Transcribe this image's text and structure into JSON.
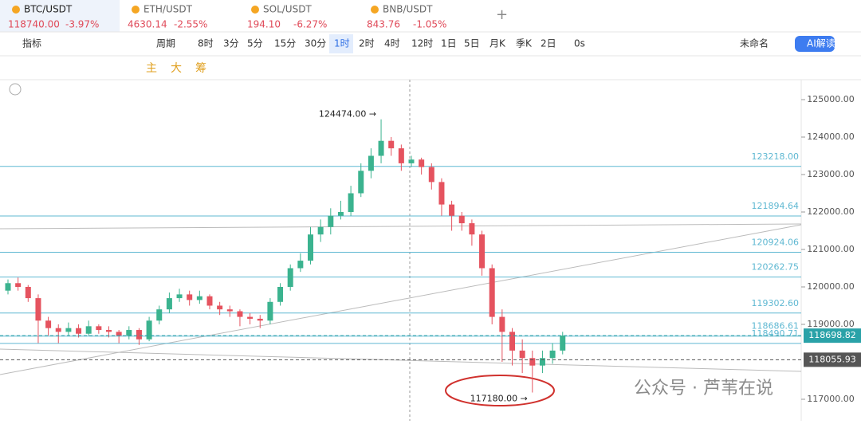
{
  "tabs": [
    {
      "symbol": "BTC/USDT",
      "price": "118740.00",
      "change": "-3.97%"
    },
    {
      "symbol": "ETH/USDT",
      "price": "4630.14",
      "change": "-2.55%"
    },
    {
      "symbol": "SOL/USDT",
      "price": "194.10",
      "change": "-6.27%"
    },
    {
      "symbol": "BNB/USDT",
      "price": "843.76",
      "change": "-1.05%"
    }
  ],
  "toolbar": [
    "指标",
    "周期",
    "8时",
    "3分",
    "5分",
    "15分",
    "30分",
    "1时",
    "2时",
    "4时",
    "12时",
    "1日",
    "5日",
    "月K",
    "季K",
    "2日",
    "0s",
    "未命名",
    "AI解读"
  ],
  "tools": [
    "主",
    "大",
    "筹"
  ],
  "watermark": "公众号 · 芦苇在说",
  "chart_data": {
    "type": "candlestick",
    "ylim": [
      116425,
      125532
    ],
    "yticks": [
      {
        "value": 117000,
        "label": "117000.00"
      },
      {
        "value": 119000,
        "label": "119000.00"
      },
      {
        "value": 120000,
        "label": "120000.00"
      },
      {
        "value": 121000,
        "label": "121000.00"
      },
      {
        "value": 122000,
        "label": "122000.00"
      },
      {
        "value": 123000,
        "label": "123000.00"
      },
      {
        "value": 124000,
        "label": "124000.00"
      },
      {
        "value": 125000,
        "label": "125000.00"
      }
    ],
    "up_color": "#3bb38f",
    "down_color": "#e5535f",
    "open": [
      119900,
      120100,
      120000,
      119700,
      119100,
      118900,
      118800,
      118900,
      118750,
      118950,
      118850,
      118800,
      118700,
      118850,
      118600,
      119100,
      119400,
      119700,
      119800,
      119650,
      119750,
      119500,
      119400,
      119350,
      119200,
      119150,
      119100,
      119600,
      120000,
      120500,
      120700,
      121400,
      121600,
      121900,
      122000,
      122500,
      123100,
      123500,
      123900,
      123700,
      123300,
      123400,
      123200,
      122800,
      122200,
      121900,
      121700,
      121400,
      120500,
      119200,
      118800,
      118300,
      118100,
      117900,
      118100,
      118300
    ],
    "high": [
      120200,
      120250,
      120050,
      119800,
      119200,
      119000,
      119050,
      119000,
      119100,
      119000,
      118950,
      118850,
      118950,
      118900,
      119200,
      119500,
      119850,
      119950,
      119900,
      119900,
      119800,
      119600,
      119500,
      119400,
      119300,
      119250,
      119700,
      120100,
      120600,
      120900,
      121600,
      121800,
      122100,
      122300,
      122700,
      123300,
      123700,
      124474,
      124000,
      123800,
      123500,
      123450,
      123300,
      122900,
      122300,
      122000,
      121800,
      121500,
      120600,
      119400,
      118900,
      118600,
      118300,
      118300,
      118500,
      118800
    ],
    "low": [
      119800,
      119900,
      119600,
      118500,
      118700,
      118500,
      118700,
      118650,
      118700,
      118750,
      118650,
      118500,
      118600,
      118450,
      118550,
      119000,
      119300,
      119600,
      119500,
      119550,
      119400,
      119250,
      119200,
      118950,
      119000,
      118900,
      119000,
      119500,
      119900,
      120400,
      120600,
      121200,
      121400,
      121800,
      121900,
      122400,
      122900,
      123300,
      123500,
      123100,
      123200,
      123000,
      122600,
      121900,
      121500,
      121500,
      121100,
      120300,
      119000,
      118000,
      117900,
      117700,
      117180,
      117700,
      117950,
      118200
    ],
    "close": [
      120100,
      120000,
      119700,
      119100,
      118900,
      118800,
      118900,
      118750,
      118950,
      118850,
      118800,
      118700,
      118850,
      118600,
      119100,
      119400,
      119700,
      119800,
      119650,
      119750,
      119500,
      119400,
      119350,
      119200,
      119150,
      119100,
      119600,
      120000,
      120500,
      120700,
      121400,
      121600,
      121900,
      122000,
      122500,
      123100,
      123500,
      123900,
      123700,
      123300,
      123400,
      123200,
      122800,
      122200,
      121900,
      121700,
      121400,
      120500,
      119200,
      118800,
      118300,
      118100,
      117900,
      118100,
      118300,
      118700
    ],
    "levels": [
      {
        "value": 123218,
        "label": "123218.00"
      },
      {
        "value": 121894.64,
        "label": "121894.64"
      },
      {
        "value": 120924.06,
        "label": "120924.06"
      },
      {
        "value": 120262.75,
        "label": "120262.75"
      },
      {
        "value": 119302.6,
        "label": "119302.60"
      },
      {
        "value": 118686.61,
        "label": "118686.61"
      },
      {
        "value": 118490.71,
        "label": "118490.71"
      }
    ],
    "level_color": "#5fb8d2",
    "price_tags": [
      {
        "value": 118698.82,
        "label": "118698.82",
        "color": "#2aa2a8"
      },
      {
        "value": 118055.93,
        "label": "118055.93",
        "color": "#555555"
      }
    ],
    "annotations": [
      {
        "value": 124474,
        "label": "124474.00 →"
      },
      {
        "value": 117180,
        "label": "117180.00 →"
      }
    ]
  }
}
